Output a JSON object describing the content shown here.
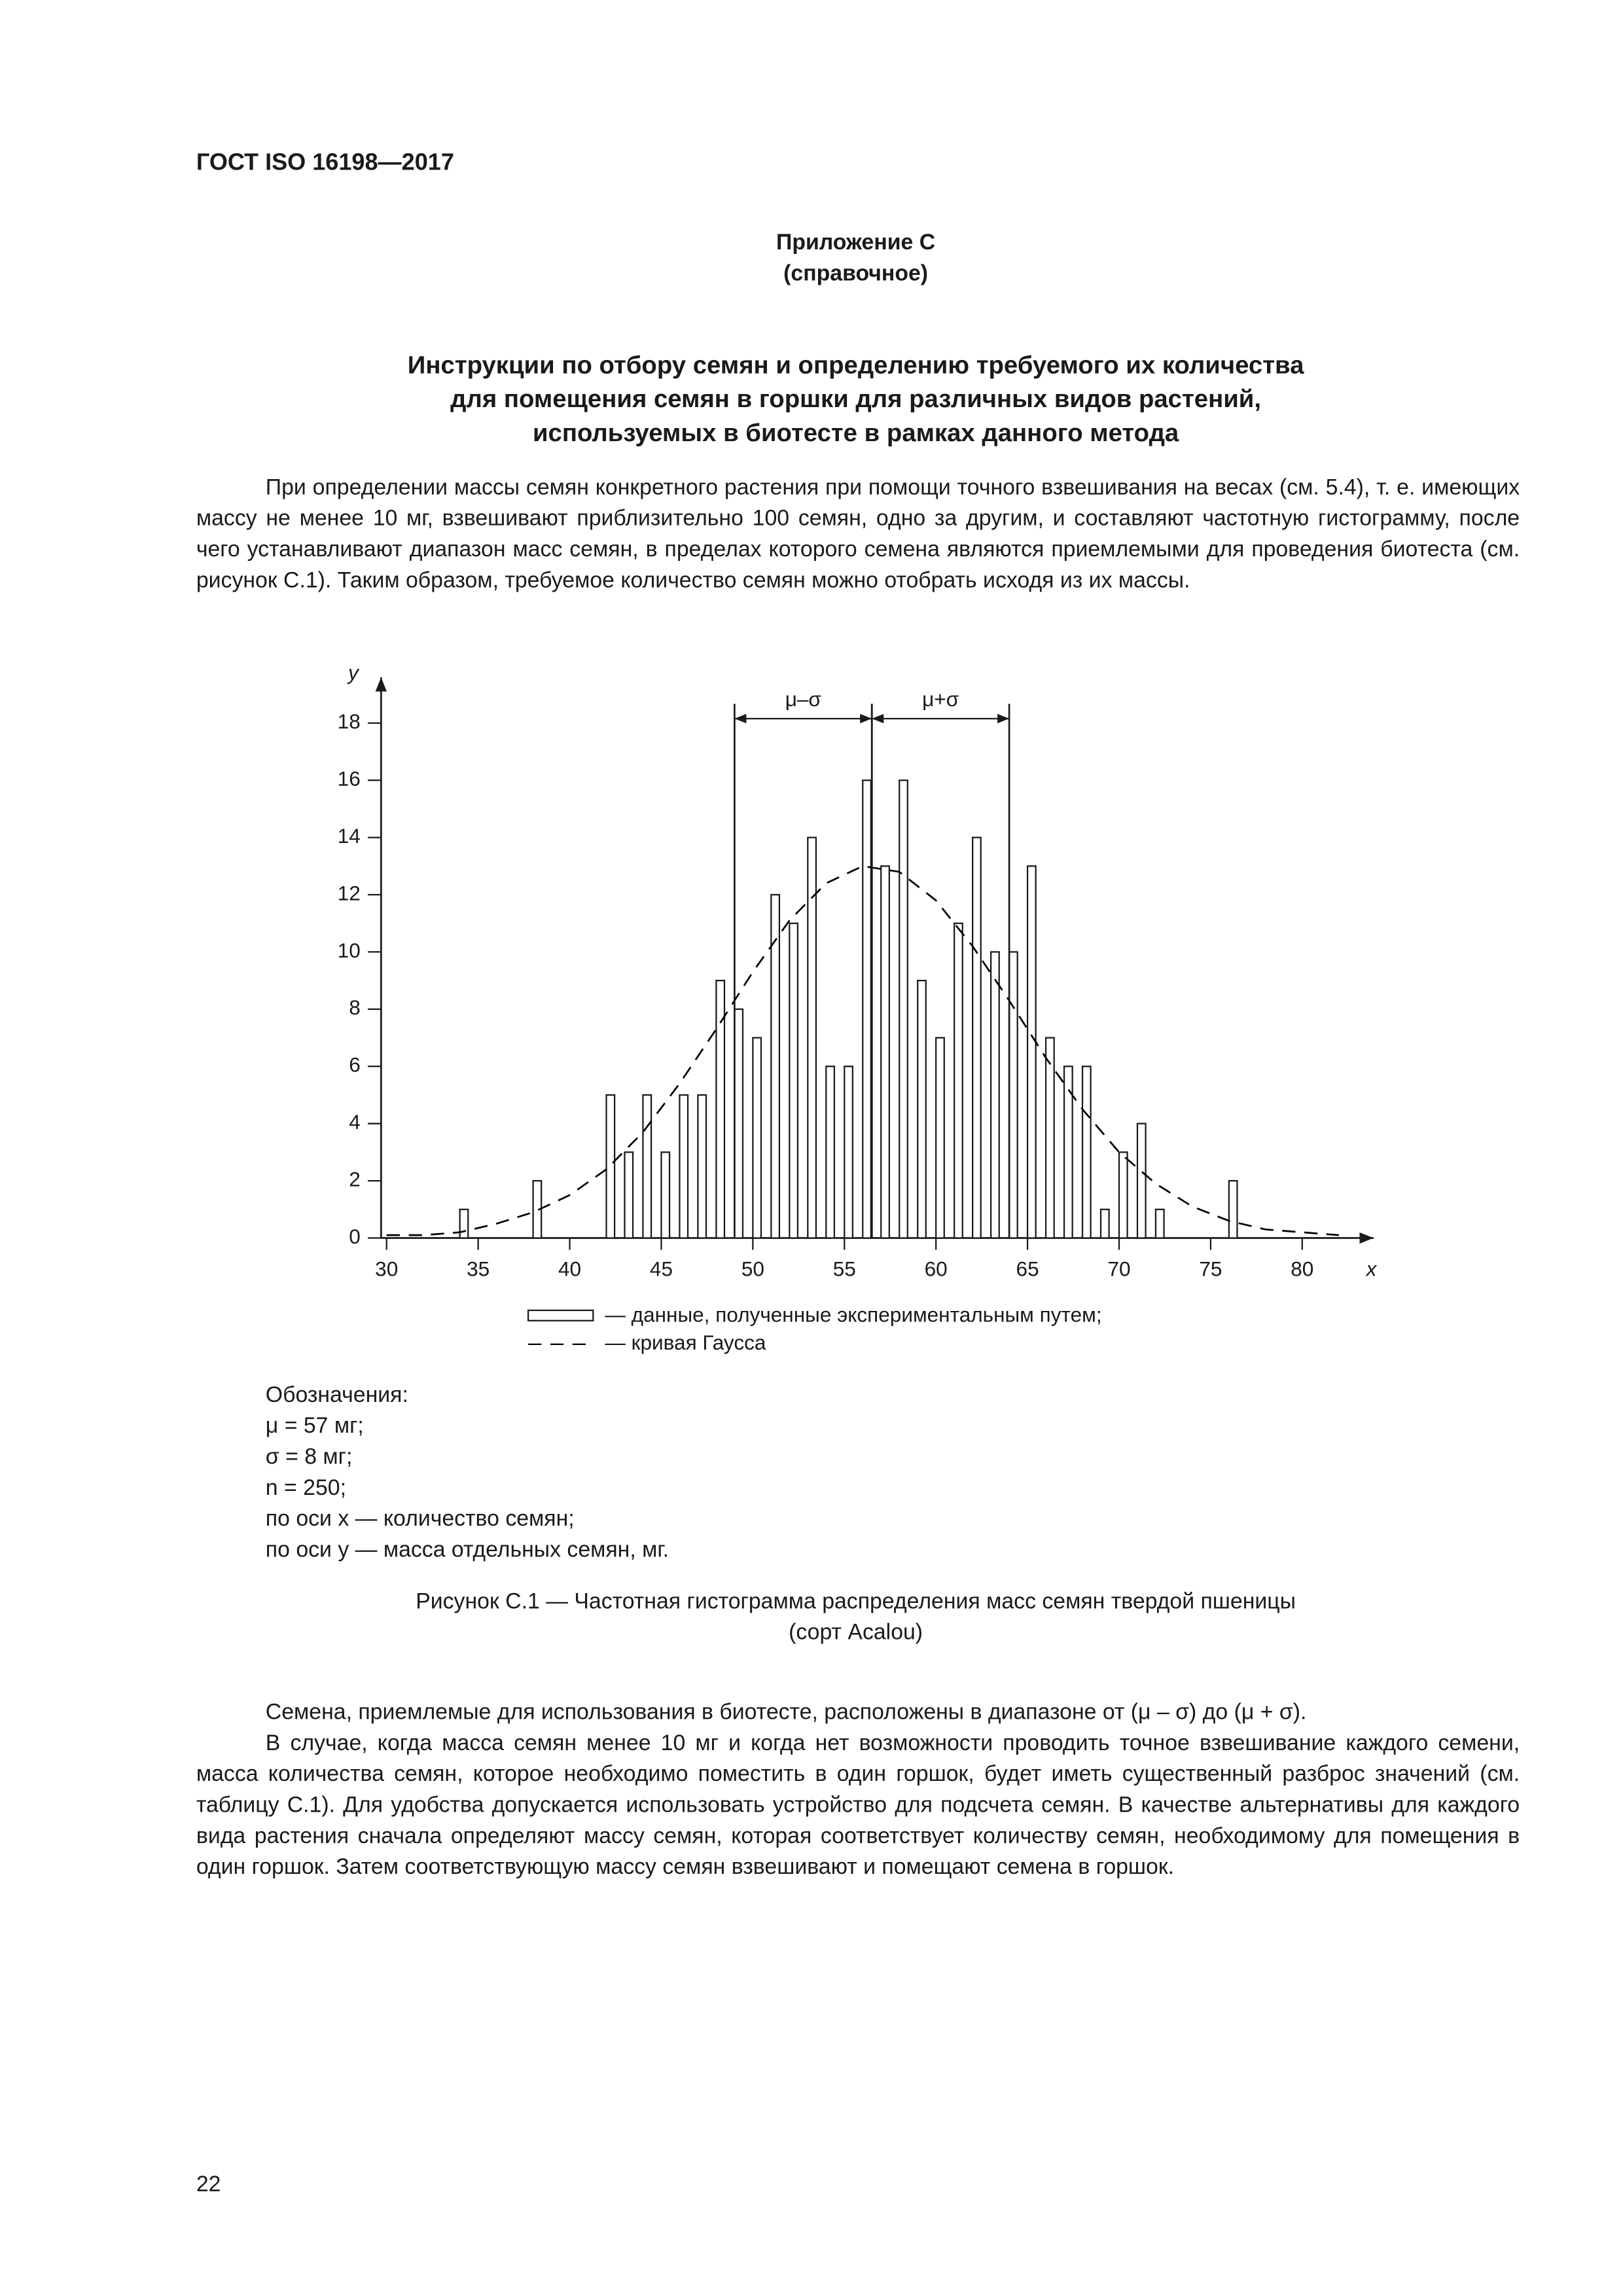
{
  "header": "ГОСТ ISO 16198—2017",
  "appendix": {
    "title": "Приложение С",
    "note": "(справочное)"
  },
  "title": [
    "Инструкции по отбору семян и определению требуемого их количества",
    "для помещения семян в горшки для различных видов растений,",
    "используемых в биотесте в рамках данного метода"
  ],
  "intro": "При определении массы семян конкретного растения при помощи точного взвешивания на весах (см. 5.4), т. е. имеющих массу не менее 10 мг, взвешивают приблизительно 100 семян, одно за другим, и составляют частотную гистограмму, после чего устанавливают диапазон масс семян, в пределах которого семена являются приемлемыми для проведения биотеста (см. рисунок С.1). Таким образом, требуемое количество семян можно отобрать исходя из их массы.",
  "chart_data": {
    "type": "bar",
    "x_label": "x",
    "y_label": "y",
    "xlim": [
      29.7,
      83.9
    ],
    "ylim": [
      0,
      19.6
    ],
    "xticks": [
      30,
      35,
      40,
      45,
      50,
      55,
      60,
      65,
      70,
      75,
      80
    ],
    "yticks": [
      0,
      2,
      4,
      6,
      8,
      10,
      12,
      14,
      16,
      18
    ],
    "series": [
      {
        "name": "— данные, полученные экспериментальным путем;",
        "color": "#ffffff",
        "x": [
          34,
          38,
          42,
          43,
          44,
          45,
          46,
          47,
          48,
          49,
          50,
          51,
          52,
          53,
          54,
          55,
          56,
          57,
          58,
          59,
          60,
          61,
          62,
          63,
          64,
          65,
          66,
          67,
          68,
          69,
          70,
          71,
          72,
          76
        ],
        "values": [
          1,
          2,
          5,
          3,
          5,
          3,
          5,
          5,
          9,
          8,
          7,
          12,
          11,
          14,
          6,
          6,
          16,
          13,
          16,
          9,
          7,
          11,
          14,
          10,
          10,
          13,
          7,
          6,
          6,
          1,
          3,
          4,
          1,
          2
        ]
      },
      {
        "name": "— кривая Гаусса",
        "color": "#000000",
        "dashed": true,
        "x": [
          30,
          32,
          34,
          36,
          38,
          40,
          42,
          44,
          46,
          48,
          50,
          52,
          54,
          56,
          58,
          60,
          62,
          64,
          66,
          68,
          70,
          72,
          74,
          76,
          78,
          80,
          82
        ],
        "values": [
          0.1,
          0.1,
          0.2,
          0.5,
          0.9,
          1.5,
          2.4,
          3.7,
          5.4,
          7.3,
          9.3,
          11.1,
          12.4,
          13,
          12.8,
          11.8,
          10.2,
          8.3,
          6.3,
          4.5,
          3.0,
          1.9,
          1.1,
          0.6,
          0.3,
          0.2,
          0.1
        ]
      }
    ],
    "annotations": [
      {
        "text": "μ–σ",
        "x1": 49,
        "x2": 56.5
      },
      {
        "text": "μ+σ",
        "x1": 56.5,
        "x2": 64
      }
    ]
  },
  "notation": {
    "heading": "Обозначения:",
    "items": [
      "μ = 57 мг;",
      "σ = 8 мг;",
      "n = 250;",
      "по оси x — количество семян;",
      "по оси y — масса отдельных семян, мг."
    ]
  },
  "caption": [
    "Рисунок С.1 — Частотная гистограмма распределения масс семян твердой пшеницы",
    "(сорт Acalou)"
  ],
  "body": [
    "Семена, приемлемые для использования в биотесте, расположены в диапазоне от (μ – σ) до (μ + σ).",
    "В случае, когда масса семян менее 10 мг и когда нет возможности проводить точное взвешивание каждого семени, масса количества семян, которое необходимо поместить в один горшок, будет иметь существенный разброс значений (см. таблицу С.1). Для удобства допускается использовать устройство для подсчета семян. В качестве альтернативы для каждого вида растения сначала определяют массу семян, которая соответствует количеству семян, необходимому для помещения в один горшок. Затем соответствующую массу семян взвешивают и помещают семена в горшок."
  ],
  "page_number": 22
}
